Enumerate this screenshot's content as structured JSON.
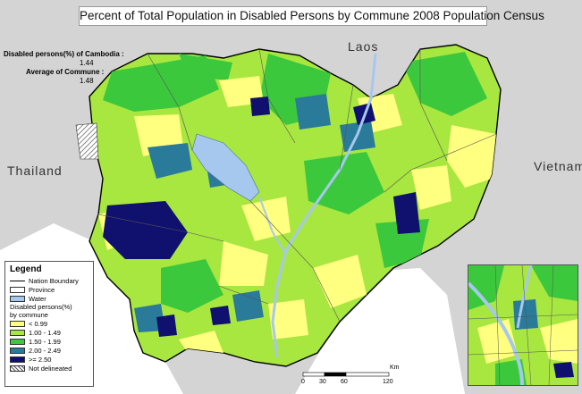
{
  "title": "Percent of Total Population in Disabled Persons by Commune  2008 Population Census",
  "countries": {
    "laos": "Laos",
    "thailand": "Thailand",
    "vietnam": "Vietnam"
  },
  "stats": {
    "cambodia_label": "Disabled persons(%) of Cambodia :",
    "cambodia_value": "1.44",
    "commune_label": "Average of Commune :",
    "commune_value": "1.48"
  },
  "legend": {
    "title": "Legend",
    "nation_boundary": "Nation Boundary",
    "province": "Province",
    "water": "Water",
    "category_title_1": "Disabled persons(%)",
    "category_title_2": "by commune",
    "classes": [
      {
        "label": "< 0.99",
        "color": "#ffff80"
      },
      {
        "label": "1.00 - 1.49",
        "color": "#a8e640"
      },
      {
        "label": "1.50 - 1.99",
        "color": "#3cc83c"
      },
      {
        "label": "2.00 - 2.49",
        "color": "#2a7a9a"
      },
      {
        "label": ">= 2.50",
        "color": "#10106e"
      }
    ],
    "not_delineated": "Not delineated"
  },
  "scale": {
    "unit": "Km",
    "ticks": [
      "0",
      "30",
      "60",
      "120"
    ]
  },
  "colors": {
    "water": "#a6c8ef",
    "outside_land": "#d4d4d4",
    "sea": "#ffffff"
  }
}
